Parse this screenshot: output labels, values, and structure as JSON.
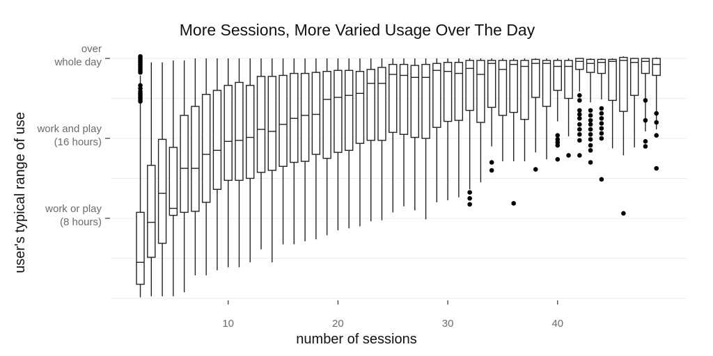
{
  "chart_data": {
    "type": "boxplot",
    "title": "More Sessions, More Varied Usage Over The Day",
    "xlabel": "number of sessions",
    "ylabel": "user's typical range of use",
    "xlim": [
      1.5,
      50
    ],
    "ylim": [
      0,
      25
    ],
    "grid": true,
    "legend": "none",
    "x_ticks": [
      10,
      20,
      30,
      40
    ],
    "y_ticks": [
      {
        "value": 24,
        "lines": [
          "over",
          "whole day"
        ]
      },
      {
        "value": 16,
        "lines": [
          "work and play",
          "(16 hours)"
        ]
      },
      {
        "value": 8,
        "lines": [
          "work or play",
          "(8 hours)"
        ]
      }
    ],
    "y_minor_gridlines": [
      20,
      12,
      4,
      0
    ],
    "boxes": [
      {
        "x": 2,
        "min": 0.1,
        "q1": 1.4,
        "median": 3.6,
        "q3": 8.6,
        "max": 22.3,
        "outliers": [
          22.6,
          22.8,
          23.0,
          23.2,
          23.4,
          23.6,
          23.8,
          24.0,
          24.2,
          19.7,
          19.9,
          20.1,
          20.3,
          20.5,
          20.7,
          21.0,
          21.3
        ]
      },
      {
        "x": 3,
        "min": 0.2,
        "q1": 4.1,
        "median": 7.6,
        "q3": 13.3,
        "max": 23.6,
        "outliers": []
      },
      {
        "x": 4,
        "min": 0.2,
        "q1": 5.5,
        "median": 10.5,
        "q3": 15.9,
        "max": 23.6,
        "outliers": []
      },
      {
        "x": 5,
        "min": 0.2,
        "q1": 8.3,
        "median": 9.0,
        "q3": 15.1,
        "max": 23.8,
        "outliers": []
      },
      {
        "x": 6,
        "min": 0.6,
        "q1": 8.6,
        "median": 13.0,
        "q3": 18.3,
        "max": 23.8,
        "outliers": []
      },
      {
        "x": 7,
        "min": 2.3,
        "q1": 8.7,
        "median": 13.0,
        "q3": 19.2,
        "max": 24.0,
        "outliers": []
      },
      {
        "x": 8,
        "min": 2.3,
        "q1": 9.6,
        "median": 14.4,
        "q3": 20.4,
        "max": 24.0,
        "outliers": []
      },
      {
        "x": 9,
        "min": 2.8,
        "q1": 10.9,
        "median": 14.8,
        "q3": 20.8,
        "max": 24.0,
        "outliers": []
      },
      {
        "x": 10,
        "min": 3.1,
        "q1": 11.8,
        "median": 15.7,
        "q3": 21.3,
        "max": 24.0,
        "outliers": []
      },
      {
        "x": 11,
        "min": 3.1,
        "q1": 11.8,
        "median": 15.8,
        "q3": 21.6,
        "max": 24.0,
        "outliers": []
      },
      {
        "x": 12,
        "min": 3.6,
        "q1": 12.0,
        "median": 16.1,
        "q3": 21.3,
        "max": 24.0,
        "outliers": []
      },
      {
        "x": 13,
        "min": 4.9,
        "q1": 12.6,
        "median": 16.9,
        "q3": 22.2,
        "max": 24.0,
        "outliers": []
      },
      {
        "x": 14,
        "min": 3.6,
        "q1": 12.8,
        "median": 16.7,
        "q3": 22.2,
        "max": 24.0,
        "outliers": []
      },
      {
        "x": 15,
        "min": 5.4,
        "q1": 13.2,
        "median": 17.4,
        "q3": 22.3,
        "max": 24.0,
        "outliers": []
      },
      {
        "x": 16,
        "min": 5.4,
        "q1": 13.6,
        "median": 18.0,
        "q3": 22.5,
        "max": 24.0,
        "outliers": []
      },
      {
        "x": 17,
        "min": 5.7,
        "q1": 13.7,
        "median": 18.3,
        "q3": 22.5,
        "max": 24.0,
        "outliers": []
      },
      {
        "x": 18,
        "min": 5.9,
        "q1": 14.4,
        "median": 18.4,
        "q3": 22.6,
        "max": 24.0,
        "outliers": []
      },
      {
        "x": 19,
        "min": 6.3,
        "q1": 14.0,
        "median": 19.9,
        "q3": 22.7,
        "max": 24.0,
        "outliers": []
      },
      {
        "x": 20,
        "min": 6.8,
        "q1": 14.6,
        "median": 20.1,
        "q3": 22.8,
        "max": 24.0,
        "outliers": []
      },
      {
        "x": 21,
        "min": 7.0,
        "q1": 14.8,
        "median": 20.3,
        "q3": 22.8,
        "max": 24.0,
        "outliers": []
      },
      {
        "x": 22,
        "min": 7.2,
        "q1": 15.5,
        "median": 20.5,
        "q3": 22.7,
        "max": 24.0,
        "outliers": []
      },
      {
        "x": 23,
        "min": 7.7,
        "q1": 15.8,
        "median": 21.5,
        "q3": 22.9,
        "max": 24.0,
        "outliers": []
      },
      {
        "x": 24,
        "min": 7.8,
        "q1": 15.8,
        "median": 21.5,
        "q3": 23.1,
        "max": 24.0,
        "outliers": []
      },
      {
        "x": 25,
        "min": 8.6,
        "q1": 16.6,
        "median": 22.4,
        "q3": 23.4,
        "max": 24.0,
        "outliers": []
      },
      {
        "x": 26,
        "min": 9.2,
        "q1": 16.4,
        "median": 22.3,
        "q3": 23.4,
        "max": 24.0,
        "outliers": []
      },
      {
        "x": 27,
        "min": 8.8,
        "q1": 16.1,
        "median": 22.1,
        "q3": 23.3,
        "max": 24.0,
        "outliers": []
      },
      {
        "x": 28,
        "min": 7.9,
        "q1": 16.0,
        "median": 22.1,
        "q3": 23.4,
        "max": 24.0,
        "outliers": []
      },
      {
        "x": 29,
        "min": 9.6,
        "q1": 17.1,
        "median": 22.8,
        "q3": 23.5,
        "max": 24.0,
        "outliers": []
      },
      {
        "x": 30,
        "min": 9.8,
        "q1": 17.7,
        "median": 22.7,
        "q3": 23.6,
        "max": 24.0,
        "outliers": []
      },
      {
        "x": 31,
        "min": 10.1,
        "q1": 17.8,
        "median": 22.5,
        "q3": 23.6,
        "max": 24.0,
        "outliers": []
      },
      {
        "x": 32,
        "min": 10.9,
        "q1": 18.8,
        "median": 23.0,
        "q3": 23.8,
        "max": 24.0,
        "outliers": [
          10.6,
          10.0,
          9.4
        ]
      },
      {
        "x": 33,
        "min": 11.6,
        "q1": 17.6,
        "median": 22.4,
        "q3": 23.8,
        "max": 24.0,
        "outliers": []
      },
      {
        "x": 34,
        "min": 15.2,
        "q1": 19.1,
        "median": 23.5,
        "q3": 23.8,
        "max": 24.0,
        "outliers": [
          13.6,
          12.8
        ]
      },
      {
        "x": 35,
        "min": 13.7,
        "q1": 18.3,
        "median": 22.9,
        "q3": 23.8,
        "max": 24.0,
        "outliers": []
      },
      {
        "x": 36,
        "min": 13.7,
        "q1": 18.6,
        "median": 23.4,
        "q3": 23.8,
        "max": 24.0,
        "outliers": [
          9.5
        ]
      },
      {
        "x": 37,
        "min": 13.7,
        "q1": 17.9,
        "median": 23.2,
        "q3": 23.8,
        "max": 24.0,
        "outliers": []
      },
      {
        "x": 38,
        "min": 14.6,
        "q1": 20.1,
        "median": 23.5,
        "q3": 23.9,
        "max": 24.0,
        "outliers": [
          12.9
        ]
      },
      {
        "x": 39,
        "min": 13.9,
        "q1": 19.2,
        "median": 23.5,
        "q3": 23.8,
        "max": 24.0,
        "outliers": []
      },
      {
        "x": 40,
        "min": 17.7,
        "q1": 20.8,
        "median": 23.2,
        "q3": 23.8,
        "max": 24.0,
        "outliers": [
          16.3,
          15.9,
          15.6,
          15.3,
          13.9
        ]
      },
      {
        "x": 41,
        "min": 16.2,
        "q1": 20.0,
        "median": 23.2,
        "q3": 23.8,
        "max": 24.0,
        "outliers": [
          14.3
        ]
      },
      {
        "x": 42,
        "min": 20.7,
        "q1": 22.9,
        "median": 23.7,
        "q3": 24.0,
        "max": 24.0,
        "outliers": [
          20.3,
          19.8,
          18.8,
          18.4,
          18.0,
          17.4,
          16.9,
          16.4,
          15.8,
          14.3
        ]
      },
      {
        "x": 43,
        "min": 19.6,
        "q1": 22.6,
        "median": 23.5,
        "q3": 23.9,
        "max": 24.0,
        "outliers": [
          18.8,
          18.3,
          17.8,
          17.4,
          16.9,
          16.4,
          15.9,
          15.3,
          14.8,
          13.6
        ]
      },
      {
        "x": 44,
        "min": 19.9,
        "q1": 22.5,
        "median": 23.6,
        "q3": 23.9,
        "max": 24.0,
        "outliers": [
          19.0,
          18.5,
          18.0,
          17.5,
          17.0,
          16.5,
          16.0,
          11.9
        ]
      },
      {
        "x": 45,
        "min": 15.0,
        "q1": 19.8,
        "median": 23.7,
        "q3": 23.9,
        "max": 24.0,
        "outliers": []
      },
      {
        "x": 46,
        "min": 14.3,
        "q1": 18.7,
        "median": 23.8,
        "q3": 24.1,
        "max": 24.2,
        "outliers": [
          8.5
        ]
      },
      {
        "x": 47,
        "min": 15.1,
        "q1": 20.3,
        "median": 23.6,
        "q3": 24.0,
        "max": 24.0,
        "outliers": []
      },
      {
        "x": 48,
        "min": 16.7,
        "q1": 22.5,
        "median": 23.7,
        "q3": 24.0,
        "max": 24.0,
        "outliers": [
          19.8,
          17.8,
          15.7,
          15.2
        ]
      },
      {
        "x": 49,
        "min": 16.9,
        "q1": 22.3,
        "median": 23.4,
        "q3": 24.0,
        "max": 24.1,
        "outliers": [
          18.5,
          17.6,
          16.3,
          13.0
        ]
      }
    ]
  }
}
